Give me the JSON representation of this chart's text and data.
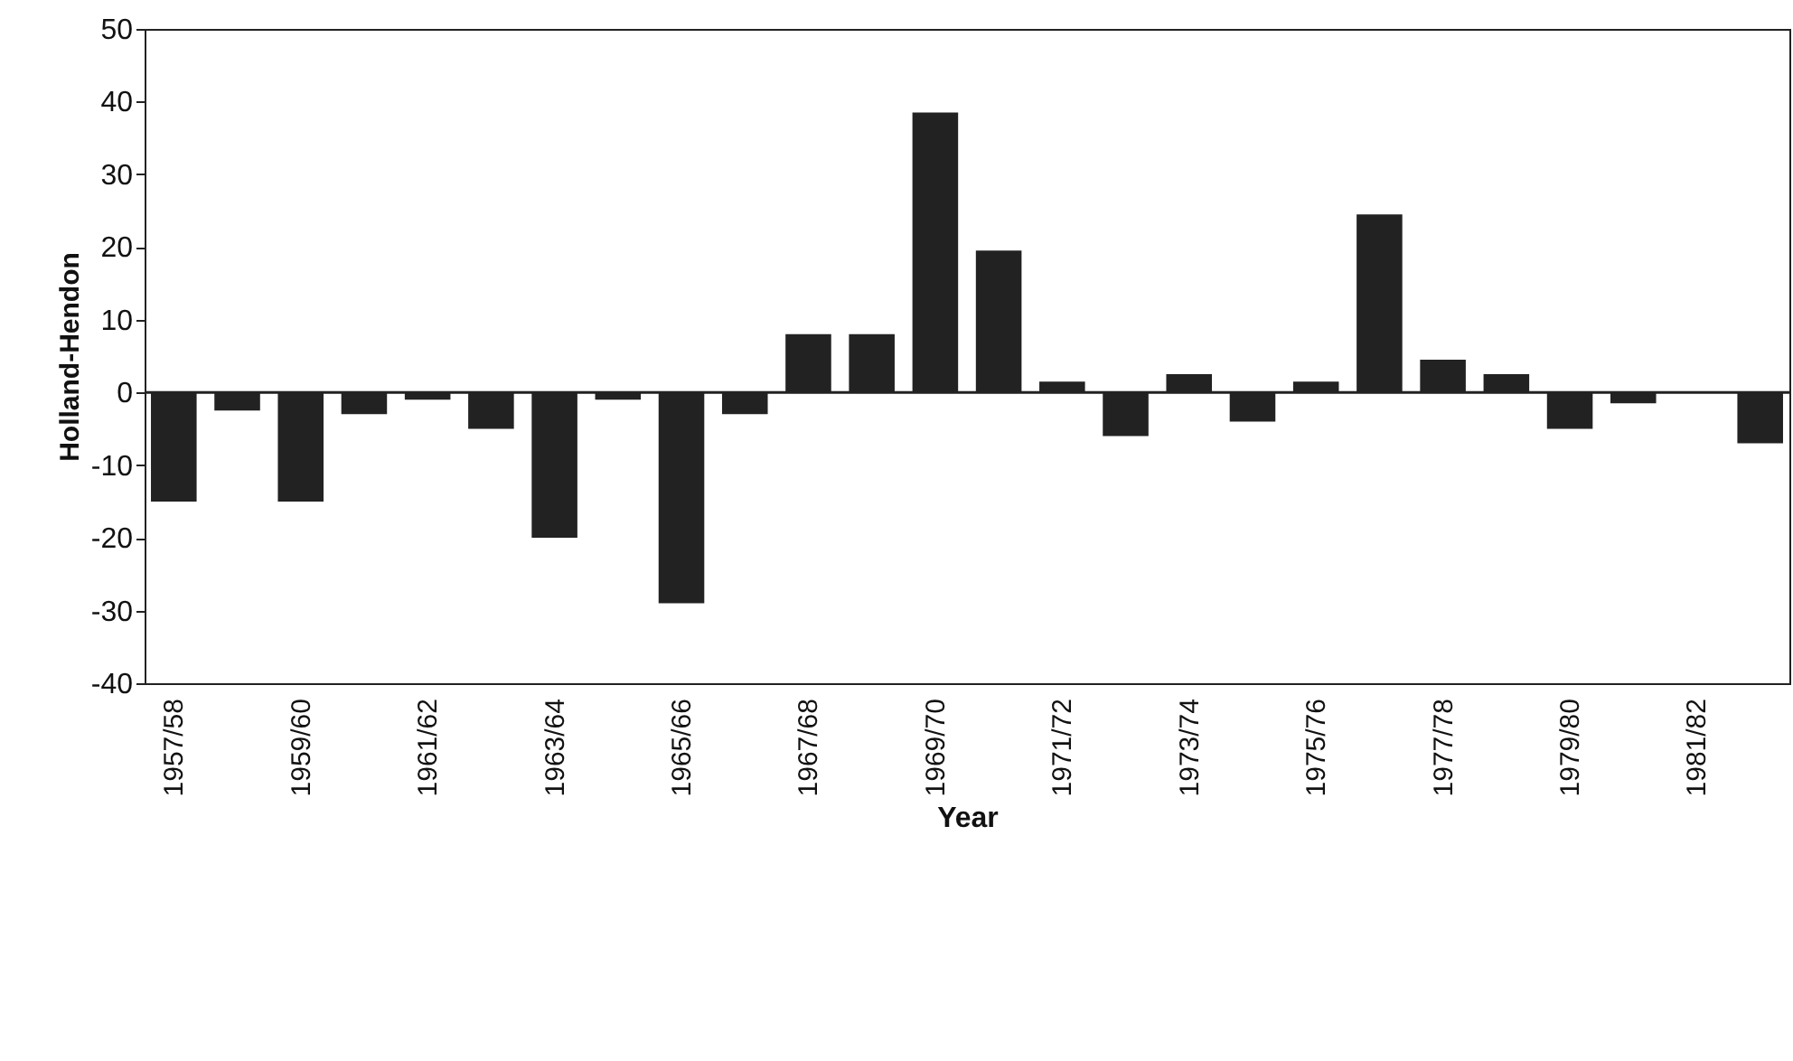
{
  "chart_data": {
    "type": "bar",
    "xlabel": "Year",
    "ylabel": "Holland-Hendon",
    "categories": [
      "1957/58",
      null,
      "1959/60",
      null,
      "1961/62",
      null,
      "1963/64",
      null,
      "1965/66",
      null,
      "1967/68",
      null,
      "1969/70",
      null,
      "1971/72",
      null,
      "1973/74",
      null,
      "1975/76",
      null,
      "1977/78",
      null,
      "1979/80",
      null,
      "1981/82",
      null
    ],
    "values": [
      -15,
      -2.5,
      -15,
      -3,
      -1,
      -5,
      -20,
      -1,
      -29,
      -3,
      8,
      8,
      38.5,
      19.5,
      1.5,
      -6,
      2.5,
      -4,
      1.5,
      24.5,
      4.5,
      2.5,
      -5,
      -1.5,
      null,
      -7
    ],
    "color": "#222222",
    "ylim": [
      -40,
      50
    ],
    "yticks": [
      -40,
      -30,
      -20,
      -10,
      0,
      10,
      20,
      30,
      40,
      50
    ],
    "ref_lines": [
      {
        "axis": "y",
        "value": 0,
        "color": "#222222"
      }
    ],
    "grid": false
  }
}
